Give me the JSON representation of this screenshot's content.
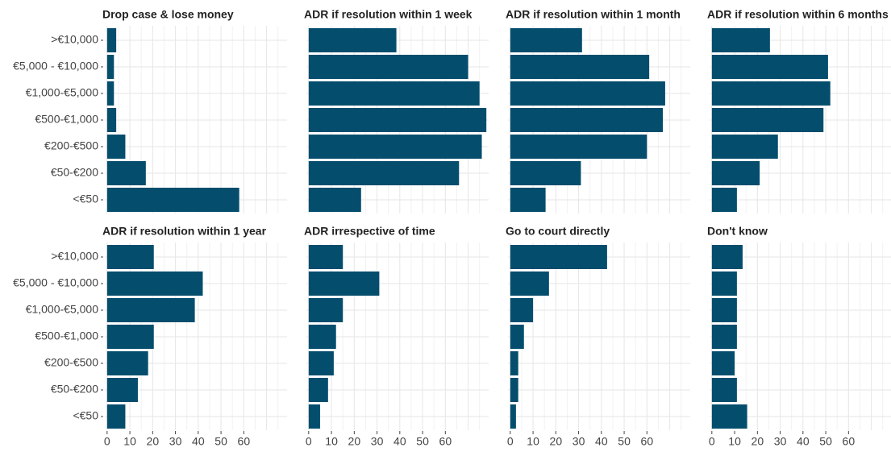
{
  "chart_data": {
    "type": "bar",
    "color": "#044d6d",
    "grid": true,
    "categories": [
      ">€10,000",
      "€5,000 - €10,000",
      "€1,000-€5,000",
      "€500-€1,000",
      "€200-€500",
      "€50-€200",
      "<€50"
    ],
    "xlim": [
      -1,
      79
    ],
    "xticks": [
      0,
      10,
      20,
      30,
      40,
      50,
      60
    ],
    "panels": [
      {
        "title": "Drop case & lose money",
        "values": [
          4,
          3,
          3,
          4,
          8,
          17,
          58
        ]
      },
      {
        "title": "ADR if resolution within 1 week",
        "values": [
          38.5,
          70,
          75,
          78,
          76,
          66,
          23
        ]
      },
      {
        "title": "ADR if resolution within 1 month",
        "values": [
          31.5,
          61,
          68,
          67,
          60,
          31,
          15.5
        ]
      },
      {
        "title": "ADR if resolution within 6 months",
        "values": [
          25.5,
          51,
          52,
          49,
          29,
          21,
          11
        ]
      },
      {
        "title": "ADR if resolution within 1 year",
        "values": [
          20.5,
          42,
          38.5,
          20.5,
          18,
          13.5,
          8
        ]
      },
      {
        "title": "ADR irrespective of time",
        "values": [
          15,
          31,
          15,
          12,
          11,
          8.5,
          5
        ]
      },
      {
        "title": "Go to court directly",
        "values": [
          42.5,
          17,
          10,
          6,
          3.5,
          3.5,
          2.5
        ]
      },
      {
        "title": "Don't know",
        "values": [
          13.5,
          11,
          11,
          11,
          10,
          11,
          15.5
        ]
      }
    ]
  }
}
